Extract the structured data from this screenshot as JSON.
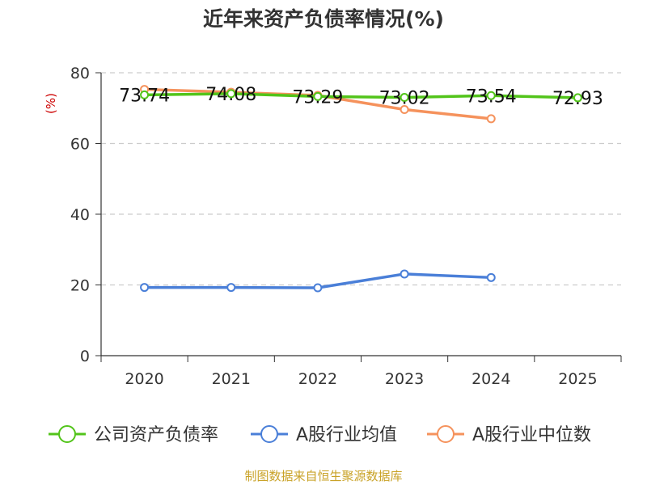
{
  "chart_data": {
    "type": "line",
    "title": "近年来资产负债率情况(%)",
    "ylabel": "(%)",
    "xlabel": "",
    "categories": [
      "2020",
      "2021",
      "2022",
      "2023",
      "2024",
      "2025"
    ],
    "ylim": [
      0,
      80
    ],
    "yticks": [
      0,
      20,
      40,
      60,
      80
    ],
    "grid": true,
    "legend_position": "bottom",
    "series": [
      {
        "name": "公司资产负债率",
        "color": "#52c41a",
        "values": [
          73.74,
          74.08,
          73.29,
          73.02,
          73.54,
          72.93
        ],
        "labels": [
          "73.74",
          "74.08",
          "73.29",
          "73.02",
          "73.54",
          "72.93"
        ]
      },
      {
        "name": "A股行业均值",
        "color": "#4a7fd8",
        "values": [
          19.3,
          19.3,
          19.2,
          23.1,
          22.1,
          null
        ]
      },
      {
        "name": "A股行业中位数",
        "color": "#f5925c",
        "values": [
          75.3,
          74.5,
          73.6,
          69.6,
          67.0,
          null
        ]
      }
    ]
  },
  "source": "制图数据来自恒生聚源数据库",
  "colors": {
    "title": "#333333",
    "unit_label": "#cc0000",
    "source": "#c9a227",
    "axis": "#333333",
    "grid": "#cccccc"
  }
}
